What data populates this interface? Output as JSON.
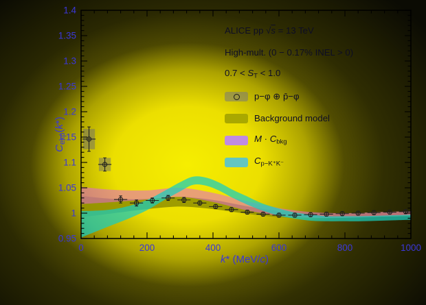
{
  "colors": {
    "axis_text": "#3b37d8",
    "frame": "#000000",
    "legend_text": "#0d0d24",
    "point": "#1f1f1f",
    "syst_box": "rgba(110,110,110,0.5)",
    "glow": "#f0e800"
  },
  "legend": {
    "lines": [
      {
        "name": "alice-title",
        "segs": [
          {
            "t": "ALICE pp "
          },
          {
            "t": "√"
          },
          {
            "t": "s",
            "i": 1,
            "ov": 1
          },
          {
            "t": " = 13 TeV"
          }
        ]
      },
      {
        "name": "multiplicity",
        "segs": [
          {
            "t": "High-mult. (0 − 0.17% INEL > 0)"
          }
        ]
      },
      {
        "name": "spherocity",
        "segs": [
          {
            "t": "0.7 < "
          },
          {
            "t": "S",
            "i": 1
          },
          {
            "t": "T",
            "sub": 1
          },
          {
            "t": " < 1.0"
          }
        ]
      }
    ],
    "entries": [
      {
        "name": "data",
        "swatch": "rgba(120,120,120,0.55)",
        "marker": "open-circle",
        "segs": [
          {
            "t": "p−φ ⊕ p̄−φ"
          }
        ]
      },
      {
        "name": "background-model",
        "swatch": "#a9a800",
        "segs": [
          {
            "t": "Background model"
          }
        ]
      },
      {
        "name": "m-cbkg",
        "swatch": "#c08be2",
        "segs": [
          {
            "t": "M",
            "i": 1
          },
          {
            "t": " · "
          },
          {
            "t": "C",
            "i": 1
          },
          {
            "t": "bkg",
            "sub": 1
          }
        ]
      },
      {
        "name": "c-pkk",
        "swatch": "#63c6c0",
        "segs": [
          {
            "t": "C",
            "i": 1
          },
          {
            "t": "p−K⁺K⁻",
            "sub": 1
          }
        ]
      }
    ]
  },
  "chart_data": {
    "type": "scatter",
    "title": "ALICE pp sqrt(s) = 13 TeV, High-mult. (0 - 0.17% INEL > 0), 0.7 < S_T < 1.0",
    "xlabel": "k* (MeV/c)",
    "ylabel": "C_exp(k*)",
    "xlabel_rich": [
      {
        "t": "k",
        "i": 1
      },
      {
        "t": "* (MeV/"
      },
      {
        "t": "c",
        "i": 1
      },
      {
        "t": ")"
      }
    ],
    "ylabel_rich": [
      {
        "t": "C",
        "i": 1
      },
      {
        "t": "exp",
        "sub": 1
      },
      {
        "t": "("
      },
      {
        "t": "k",
        "i": 1
      },
      {
        "t": "*)"
      }
    ],
    "xlim": [
      0,
      1000
    ],
    "ylim": [
      0.95,
      1.4
    ],
    "x_major_ticks": [
      0,
      200,
      400,
      600,
      800,
      1000
    ],
    "x_tick_labels": [
      "0",
      "200",
      "400",
      "600",
      "800",
      "1000"
    ],
    "x_minor_step": 40,
    "y_major_ticks": [
      0.95,
      1.0,
      1.05,
      1.1,
      1.15,
      1.2,
      1.25,
      1.3,
      1.35,
      1.4
    ],
    "y_tick_labels": [
      "0.95",
      "1",
      "1.05",
      "1.1",
      "1.15",
      "1.2",
      "1.25",
      "1.3",
      "1.35",
      "1.4"
    ],
    "y_minor_step": 0.01,
    "grid": false,
    "legend_position": "top-right",
    "bands": [
      {
        "name": "background-model",
        "color": "#8f8f00",
        "opacity": 0.85,
        "x": [
          0,
          100,
          200,
          300,
          400,
          500,
          600,
          700,
          800,
          900,
          1000
        ],
        "lower": [
          0.992,
          1.0,
          1.008,
          1.013,
          1.008,
          0.999,
          0.992,
          0.99,
          0.991,
          0.993,
          0.994
        ],
        "upper": [
          1.034,
          1.028,
          1.028,
          1.032,
          1.026,
          1.014,
          1.004,
          1.0,
          1.0,
          1.002,
          1.004
        ]
      },
      {
        "name": "m-cbkg",
        "color": "#e266d6",
        "opacity": 0.55,
        "x": [
          0,
          100,
          200,
          300,
          400,
          500,
          600,
          700,
          800,
          900,
          1000
        ],
        "lower": [
          1.018,
          1.022,
          1.027,
          1.032,
          1.022,
          1.006,
          0.995,
          0.991,
          0.991,
          0.993,
          0.995
        ],
        "upper": [
          1.052,
          1.046,
          1.045,
          1.05,
          1.04,
          1.024,
          1.01,
          1.002,
          1.0,
          1.002,
          1.004
        ]
      },
      {
        "name": "c-pkk",
        "color": "#17cdbf",
        "opacity": 0.72,
        "x": [
          0,
          50,
          100,
          150,
          200,
          250,
          300,
          340,
          380,
          420,
          460,
          500,
          550,
          600,
          650,
          700,
          750,
          800,
          850,
          900,
          950,
          1000
        ],
        "lower": [
          0.952,
          0.965,
          0.978,
          0.991,
          1.006,
          1.025,
          1.043,
          1.056,
          1.054,
          1.044,
          1.03,
          1.018,
          1.005,
          0.995,
          0.989,
          0.985,
          0.984,
          0.984,
          0.984,
          0.985,
          0.986,
          0.987
        ],
        "upper": [
          1.004,
          1.005,
          1.008,
          1.015,
          1.026,
          1.043,
          1.061,
          1.072,
          1.07,
          1.06,
          1.046,
          1.034,
          1.019,
          1.009,
          1.001,
          0.997,
          0.994,
          0.994,
          0.994,
          0.995,
          0.996,
          0.997
        ]
      }
    ],
    "points": [
      [
        24,
        1.146,
        0.024
      ],
      [
        72,
        1.096,
        0.013
      ],
      [
        120,
        1.027,
        0.007
      ],
      [
        168,
        1.02,
        0.006
      ],
      [
        216,
        1.025,
        0.005
      ],
      [
        264,
        1.03,
        0.005
      ],
      [
        312,
        1.026,
        0.005
      ],
      [
        360,
        1.02,
        0.004
      ],
      [
        408,
        1.013,
        0.004
      ],
      [
        456,
        1.007,
        0.004
      ],
      [
        504,
        1.002,
        0.004
      ],
      [
        552,
        0.998,
        0.004
      ],
      [
        600,
        0.996,
        0.004
      ],
      [
        648,
        0.996,
        0.004
      ],
      [
        696,
        0.997,
        0.004
      ],
      [
        744,
        0.998,
        0.004
      ],
      [
        792,
        0.999,
        0.004
      ],
      [
        840,
        1.0,
        0.004
      ],
      [
        888,
        1.001,
        0.004
      ],
      [
        936,
        1.002,
        0.004
      ],
      [
        984,
        1.003,
        0.004
      ]
    ],
    "point_x_halfwidth": 20,
    "syst_boxes": [
      {
        "x": 24,
        "y": 1.146,
        "hw": 18,
        "hh": 0.02
      },
      {
        "x": 72,
        "y": 1.096,
        "hw": 18,
        "hh": 0.013
      }
    ]
  }
}
